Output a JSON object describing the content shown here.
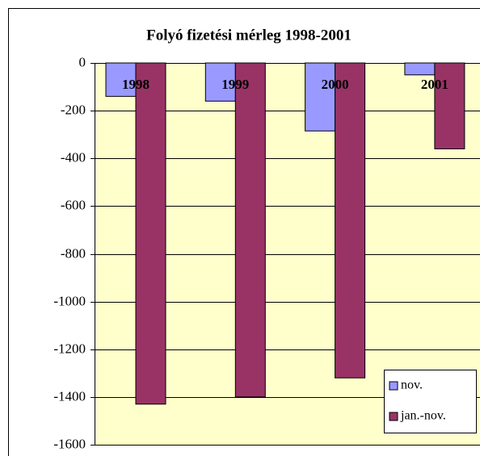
{
  "chart_data": {
    "type": "bar",
    "title": "Folyó fizetési mérleg 1998-2001",
    "categories": [
      "1998",
      "1999",
      "2000",
      "2001"
    ],
    "series": [
      {
        "name": "nov.",
        "color": "#9999ff",
        "values": [
          -140,
          -160,
          -285,
          -50
        ]
      },
      {
        "name": "jan.-nov.",
        "color": "#993366",
        "values": [
          -1430,
          -1400,
          -1320,
          -360
        ]
      }
    ],
    "ylim": [
      -1600,
      0
    ],
    "yticks": [
      0,
      -200,
      -400,
      -600,
      -800,
      -1000,
      -1200,
      -1400,
      -1600
    ],
    "grid": true,
    "legend": "lower right"
  }
}
